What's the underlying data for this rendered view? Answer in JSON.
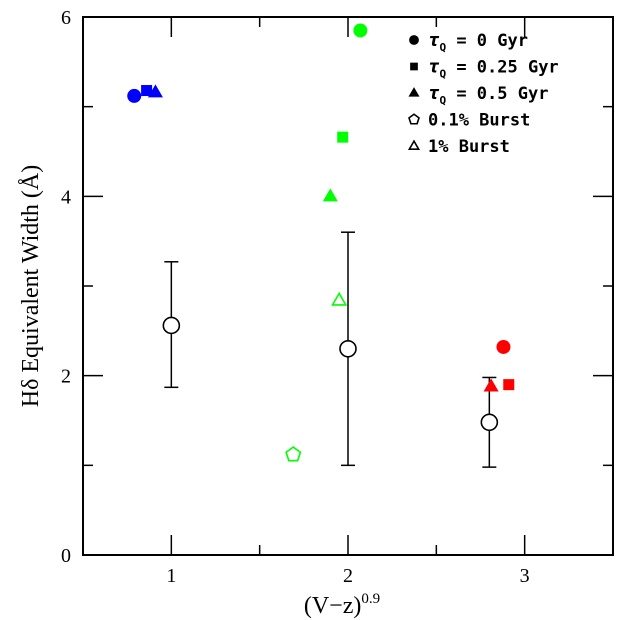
{
  "chart_data": {
    "type": "scatter",
    "xlabel": "(V−z)",
    "xlabel_exponent": "0.9",
    "ylabel": "Hδ Equivalent Width (Å)",
    "xlim": [
      0.5,
      3.5
    ],
    "ylim": [
      0,
      6
    ],
    "x_ticks": [
      1,
      2,
      3
    ],
    "y_ticks": [
      0,
      2,
      4,
      6
    ],
    "x_tick_labels": [
      "1",
      "2",
      "3"
    ],
    "y_tick_labels": [
      "0",
      "2",
      "4",
      "6"
    ],
    "x_minor_step": 0.5,
    "y_minor_step": 1,
    "grid": false,
    "legend_position": "top-right",
    "legend": [
      {
        "marker": "circle",
        "label": "τQ = 0 Gyr"
      },
      {
        "marker": "square",
        "label": "τQ = 0.25 Gyr"
      },
      {
        "marker": "triangle",
        "label": "τQ = 0.5 Gyr"
      },
      {
        "marker": "pentagon-open",
        "label": "0.1% Burst"
      },
      {
        "marker": "triangle-open",
        "label": "1% Burst"
      }
    ],
    "model_points": [
      {
        "x": 0.79,
        "y": 5.12,
        "marker": "circle",
        "color": "#0000ff"
      },
      {
        "x": 0.86,
        "y": 5.18,
        "marker": "square",
        "color": "#0000ff"
      },
      {
        "x": 0.91,
        "y": 5.16,
        "marker": "triangle",
        "color": "#0000ff"
      },
      {
        "x": 2.07,
        "y": 5.85,
        "marker": "circle",
        "color": "#00ff00"
      },
      {
        "x": 1.97,
        "y": 4.66,
        "marker": "square",
        "color": "#00ff00"
      },
      {
        "x": 1.9,
        "y": 4.0,
        "marker": "triangle",
        "color": "#00ff00"
      },
      {
        "x": 1.95,
        "y": 2.84,
        "marker": "triangle-open",
        "color": "#00ff00"
      },
      {
        "x": 1.69,
        "y": 1.12,
        "marker": "pentagon-open",
        "color": "#00ff00"
      },
      {
        "x": 2.88,
        "y": 2.32,
        "marker": "circle",
        "color": "#ff0000"
      },
      {
        "x": 2.91,
        "y": 1.9,
        "marker": "square",
        "color": "#ff0000"
      },
      {
        "x": 2.81,
        "y": 1.88,
        "marker": "triangle",
        "color": "#ff0000"
      }
    ],
    "observed_points": [
      {
        "x": 1.0,
        "y": 2.56,
        "y_low": 1.87,
        "y_high": 3.27
      },
      {
        "x": 2.0,
        "y": 2.3,
        "y_low": 1.0,
        "y_high": 3.6
      },
      {
        "x": 2.8,
        "y": 1.48,
        "y_low": 0.98,
        "y_high": 1.98
      }
    ]
  }
}
